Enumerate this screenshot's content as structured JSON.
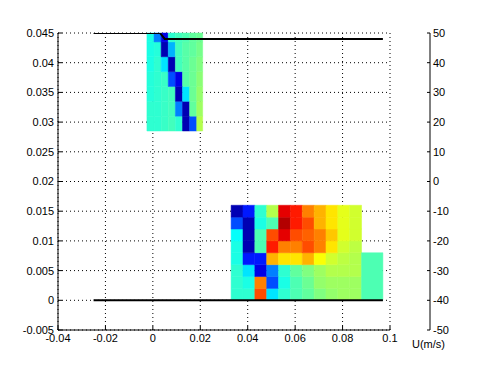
{
  "chart_data": {
    "type": "heatmap",
    "xlim": [
      -0.04,
      0.1
    ],
    "xticks": [
      -0.04,
      -0.02,
      0,
      0.02,
      0.04,
      0.06,
      0.08,
      0.1
    ],
    "ylim": [
      -0.005,
      0.045
    ],
    "yticks": [
      -0.005,
      0,
      0.005,
      0.01,
      0.015,
      0.02,
      0.025,
      0.03,
      0.035,
      0.04,
      0.045
    ],
    "grid": true,
    "patches": [
      {
        "x_edges": [
          -0.0025,
          0.0005,
          0.0035,
          0.0065,
          0.0095,
          0.0125,
          0.0155,
          0.0185,
          0.021
        ],
        "y_edges": [
          0.0285,
          0.031,
          0.0335,
          0.036,
          0.0385,
          0.041,
          0.0435,
          0.045
        ],
        "cells": [
          [
            -8,
            -8,
            -7,
            -6,
            -8,
            -45,
            -30,
            5
          ],
          [
            -8,
            -8,
            -7,
            -6,
            -25,
            -45,
            -3,
            3
          ],
          [
            -9,
            -8,
            -7,
            -6,
            -45,
            -15,
            -2,
            2
          ],
          [
            -9,
            -8,
            -7,
            -30,
            -40,
            -4,
            -2,
            1
          ],
          [
            -10,
            -8,
            -15,
            -45,
            -6,
            -4,
            -2,
            0
          ],
          [
            -10,
            -9,
            -45,
            -20,
            -6,
            -4,
            -3,
            -1
          ],
          [
            -10,
            -25,
            -40,
            -8,
            -6,
            -5,
            -3,
            -2
          ]
        ]
      },
      {
        "x_edges": [
          0.033,
          0.038,
          0.043,
          0.048,
          0.053,
          0.058,
          0.063,
          0.068,
          0.073,
          0.078,
          0.083,
          0.088
        ],
        "y_edges": [
          0,
          0.002,
          0.004,
          0.006,
          0.008,
          0.01,
          0.012,
          0.014,
          0.016
        ],
        "cells": [
          [
            -8,
            -8,
            30,
            -15,
            -8,
            -5,
            -3,
            0,
            2,
            3,
            3
          ],
          [
            -8,
            -10,
            25,
            -30,
            -10,
            -5,
            -2,
            2,
            3,
            3,
            3
          ],
          [
            -8,
            -15,
            -40,
            -25,
            -8,
            -3,
            0,
            3,
            5,
            5,
            5
          ],
          [
            -10,
            -35,
            -35,
            20,
            15,
            15,
            20,
            12,
            8,
            6,
            5
          ],
          [
            -10,
            -45,
            -5,
            35,
            25,
            25,
            30,
            25,
            15,
            8,
            6
          ],
          [
            -12,
            -45,
            -5,
            30,
            40,
            30,
            28,
            25,
            18,
            10,
            8
          ],
          [
            -30,
            -45,
            -10,
            -5,
            45,
            35,
            30,
            20,
            15,
            10,
            8
          ],
          [
            -45,
            -35,
            -8,
            5,
            40,
            35,
            25,
            20,
            15,
            10,
            8
          ]
        ]
      },
      {
        "x_edges": [
          0.088,
          0.097
        ],
        "y_edges": [
          0,
          0.008
        ],
        "cells": [
          [
            -5
          ]
        ]
      }
    ],
    "lines": [
      {
        "x": [
          -0.025,
          0.003,
          0.005,
          0.097
        ],
        "y": [
          0.045,
          0.045,
          0.044,
          0.044
        ],
        "color": "#000000"
      },
      {
        "x": [
          -0.025,
          0.097
        ],
        "y": [
          0,
          0
        ],
        "color": "#000000"
      }
    ],
    "colorbar": {
      "label": "U(m/s)",
      "range": [
        -50,
        50
      ],
      "ticks": [
        -50,
        -40,
        -30,
        -20,
        -10,
        0,
        10,
        20,
        30,
        40,
        50
      ]
    }
  }
}
